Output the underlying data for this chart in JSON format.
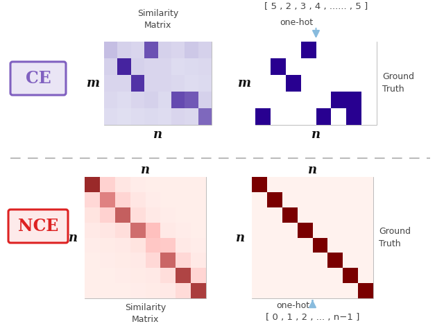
{
  "ce_label": "CE",
  "nce_label": "NCE",
  "ce_box_facecolor": "#EAE5F5",
  "ce_box_edgecolor": "#8060C0",
  "nce_box_facecolor": "#FDEAEA",
  "nce_box_edgecolor": "#DD2222",
  "bg_color": "#FFFFFF",
  "purple_dark": "#280090",
  "purple_bg": "#E8E8F5",
  "red_dark": "#7A0000",
  "red_mid": "#CC1111",
  "red_bright": "#FF3300",
  "red_bg": "#FFF2EE",
  "arrow_color": "#88BBDD",
  "divider_color": "#BBBBBB",
  "label_color": "#111111",
  "text_color": "#444444",
  "ce_sim_matrix": [
    [
      0.18,
      0.1,
      0.08,
      0.65,
      0.1,
      0.08,
      0.14,
      0.1
    ],
    [
      0.1,
      0.85,
      0.1,
      0.08,
      0.08,
      0.05,
      0.06,
      0.07
    ],
    [
      0.08,
      0.08,
      0.78,
      0.08,
      0.08,
      0.07,
      0.05,
      0.06
    ],
    [
      0.07,
      0.05,
      0.08,
      0.1,
      0.06,
      0.68,
      0.62,
      0.1
    ],
    [
      0.05,
      0.04,
      0.05,
      0.06,
      0.05,
      0.08,
      0.07,
      0.55
    ]
  ],
  "ce_gt_matrix": [
    [
      0,
      0,
      0,
      1,
      0,
      0,
      0,
      0
    ],
    [
      0,
      1,
      0,
      0,
      0,
      0,
      0,
      0
    ],
    [
      0,
      0,
      1,
      0,
      0,
      0,
      0,
      0
    ],
    [
      0,
      0,
      0,
      0,
      0,
      1,
      1,
      0
    ],
    [
      1,
      0,
      0,
      0,
      1,
      0,
      1,
      0
    ]
  ],
  "nce_sim_matrix": [
    [
      0.88,
      0.22,
      0.08,
      0.04,
      0.03,
      0.03,
      0.03,
      0.03
    ],
    [
      0.18,
      0.62,
      0.2,
      0.08,
      0.04,
      0.03,
      0.03,
      0.03
    ],
    [
      0.1,
      0.22,
      0.72,
      0.14,
      0.06,
      0.04,
      0.03,
      0.03
    ],
    [
      0.06,
      0.08,
      0.14,
      0.68,
      0.35,
      0.06,
      0.04,
      0.03
    ],
    [
      0.04,
      0.05,
      0.06,
      0.1,
      0.3,
      0.28,
      0.06,
      0.04
    ],
    [
      0.03,
      0.04,
      0.05,
      0.06,
      0.18,
      0.7,
      0.18,
      0.06
    ],
    [
      0.03,
      0.03,
      0.04,
      0.05,
      0.06,
      0.14,
      0.8,
      0.2
    ],
    [
      0.03,
      0.03,
      0.03,
      0.04,
      0.05,
      0.06,
      0.16,
      0.82
    ]
  ],
  "nce_gt_matrix": [
    [
      1,
      0,
      0,
      0,
      0,
      0,
      0,
      0
    ],
    [
      0,
      1,
      0,
      0,
      0,
      0,
      0,
      0
    ],
    [
      0,
      0,
      1,
      0,
      0,
      0,
      0,
      0
    ],
    [
      0,
      0,
      0,
      1,
      0,
      0,
      0,
      0
    ],
    [
      0,
      0,
      0,
      0,
      1,
      0,
      0,
      0
    ],
    [
      0,
      0,
      0,
      0,
      0,
      1,
      0,
      0
    ],
    [
      0,
      0,
      0,
      0,
      0,
      0,
      1,
      0
    ],
    [
      0,
      0,
      0,
      0,
      0,
      0,
      0,
      1
    ]
  ],
  "ce_top_label": "[ 5 , 2 , 3 , 4 , ...... , 5 ]",
  "nce_bottom_label": "[ 0 , 1 , 2 , ... , n−1 ]",
  "sim_matrix_label": "Similarity\nMatrix",
  "ground_truth_label": "Ground\nTruth",
  "one_hot_label": "one-hot",
  "m_label": "m",
  "n_label": "n"
}
